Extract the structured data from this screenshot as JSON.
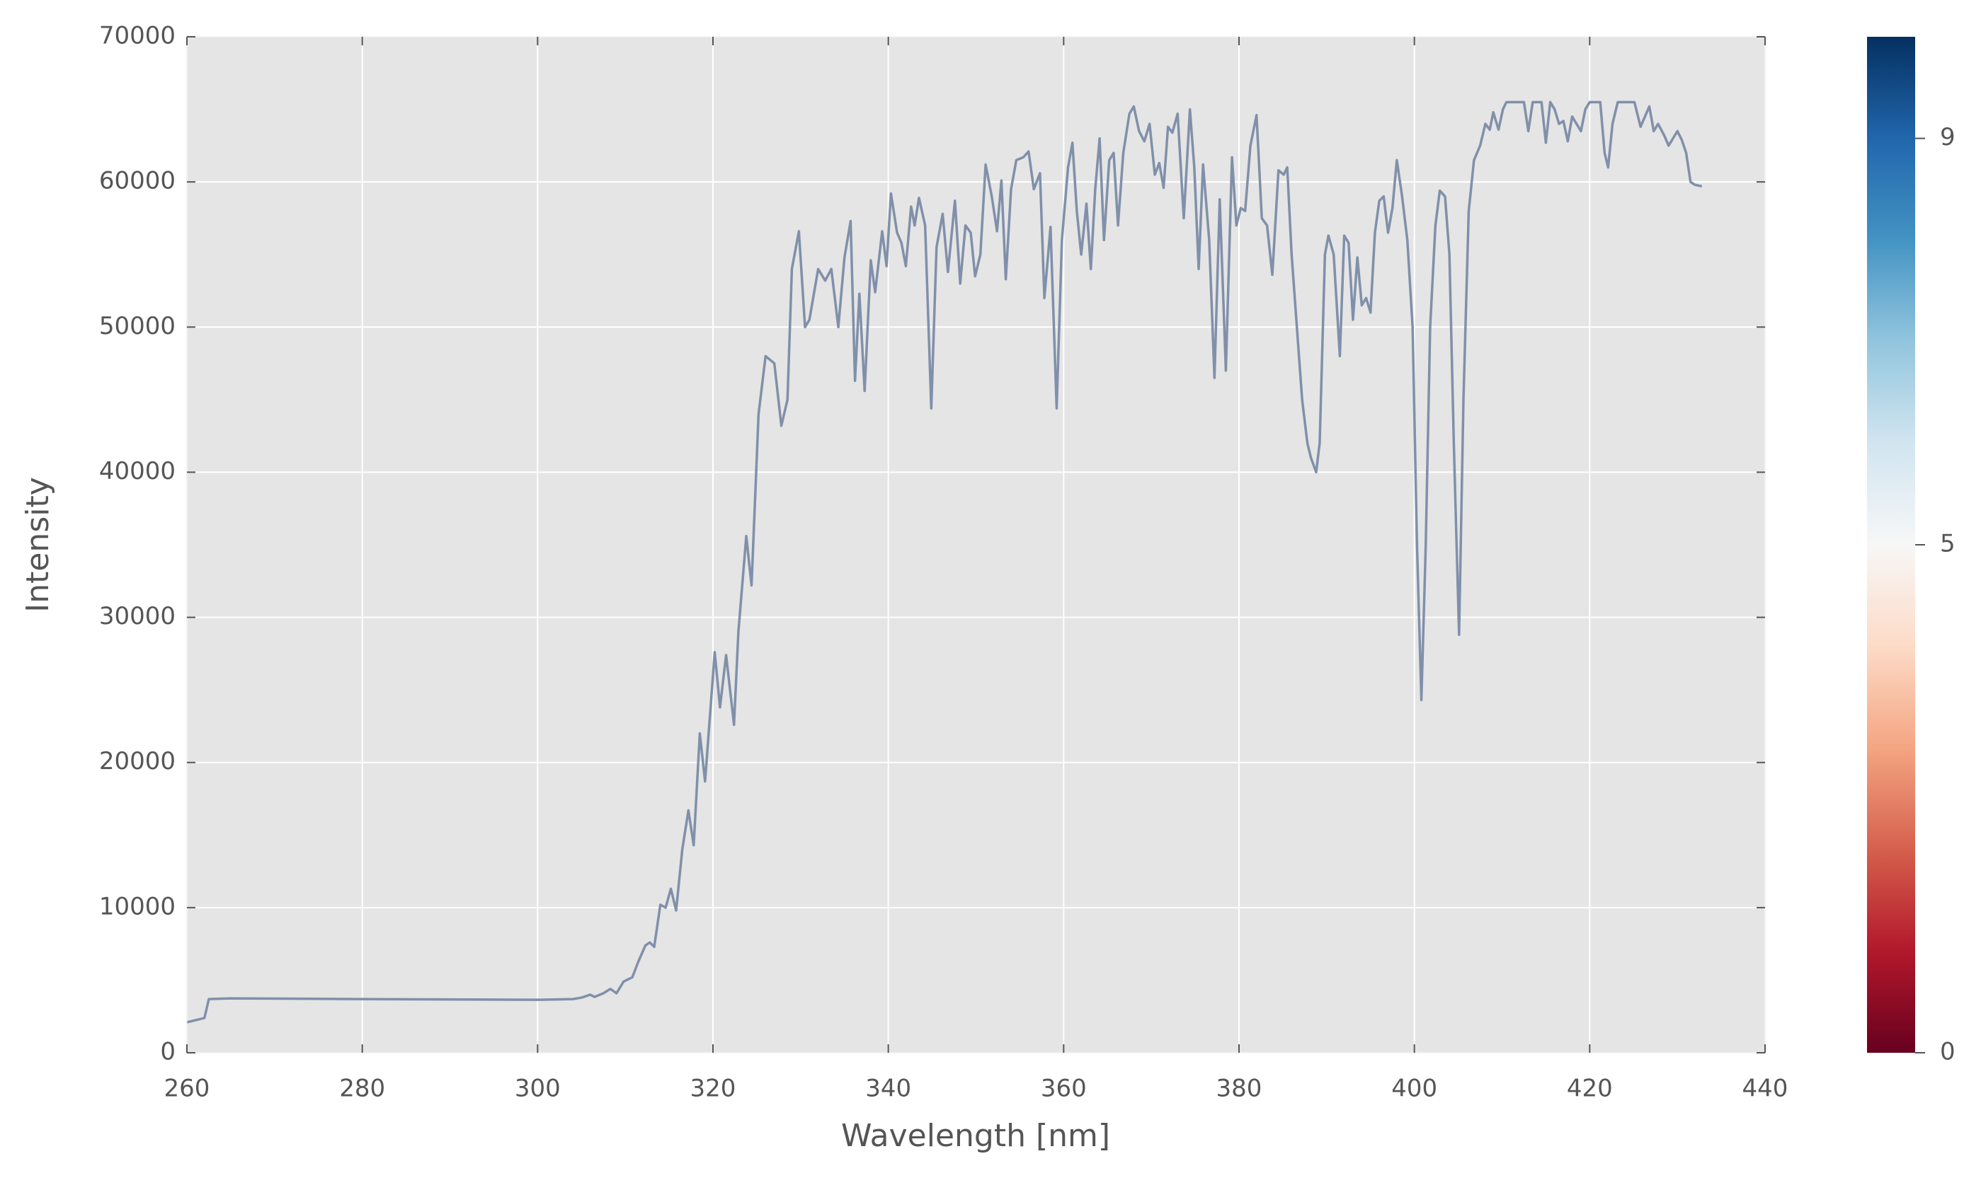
{
  "chart_data": {
    "type": "line",
    "xlabel": "Wavelength [nm]",
    "ylabel": "Intensity",
    "xlim": [
      260,
      440
    ],
    "xticks": [
      260,
      280,
      300,
      320,
      340,
      360,
      380,
      400,
      420,
      440
    ],
    "ylim": [
      0,
      70000
    ],
    "yticks": [
      0,
      10000,
      20000,
      30000,
      40000,
      50000,
      60000,
      70000
    ],
    "grid": true,
    "x": [
      260,
      262,
      262.5,
      265,
      280,
      300,
      304,
      305,
      306,
      306.5,
      307.5,
      308.3,
      309,
      309.8,
      310.8,
      311.5,
      312.3,
      312.8,
      313.3,
      314,
      314.6,
      315.2,
      315.8,
      316.5,
      317.2,
      317.8,
      318.5,
      319.1,
      320.2,
      320.8,
      321.5,
      322.4,
      322.9,
      323.8,
      324.4,
      325.2,
      326,
      327,
      327.8,
      328.5,
      329,
      329.8,
      330.5,
      331,
      332,
      332.8,
      333.5,
      334.3,
      335,
      335.7,
      336.2,
      336.7,
      337.3,
      338,
      338.5,
      339.3,
      339.8,
      340.3,
      341,
      341.5,
      342,
      342.6,
      343,
      343.5,
      344.2,
      344.9,
      345.5,
      346.2,
      346.8,
      347.6,
      348.2,
      348.8,
      349.4,
      349.9,
      350.5,
      351.1,
      351.8,
      352.4,
      352.9,
      353.4,
      354,
      354.6,
      355.4,
      356,
      356.6,
      357.3,
      357.8,
      358.5,
      359.2,
      359.8,
      360.5,
      361,
      361.5,
      362,
      362.6,
      363.1,
      363.6,
      364.1,
      364.6,
      365.2,
      365.7,
      366.2,
      366.8,
      367.5,
      368,
      368.6,
      369.2,
      369.8,
      370.4,
      370.9,
      371.4,
      371.9,
      372.4,
      373,
      373.7,
      374.4,
      374.9,
      375.4,
      375.9,
      376.6,
      377.2,
      377.8,
      378.5,
      379.2,
      379.7,
      380.2,
      380.7,
      381.3,
      382,
      382.6,
      383.2,
      383.8,
      384.5,
      385.1,
      385.5,
      386,
      386.6,
      387.2,
      387.8,
      388.2,
      388.8,
      389.2,
      389.8,
      390.2,
      390.8,
      391.5,
      392,
      392.5,
      393,
      393.5,
      394,
      394.5,
      395,
      395.5,
      396,
      396.5,
      397,
      397.5,
      398,
      398.6,
      399.2,
      399.8,
      400.3,
      400.8,
      401.3,
      401.8,
      402.4,
      402.9,
      403.5,
      404,
      404.5,
      405.1,
      405.6,
      406.2,
      406.8,
      407.5,
      408.1,
      408.6,
      409,
      409.6,
      410.1,
      410.5,
      412.5,
      413,
      413.5,
      414.5,
      415,
      415.5,
      416,
      416.5,
      417,
      417.5,
      418,
      418.5,
      419,
      419.5,
      420,
      421.2,
      421.7,
      422.1,
      422.6,
      423.2,
      425.1,
      425.8,
      426.3,
      426.8,
      427.3,
      427.8,
      428.5,
      429,
      429.5,
      430,
      430.5,
      431,
      431.5,
      432,
      432.8
    ],
    "series": [
      {
        "color": "#8090aa",
        "values": [
          2100,
          2400,
          3700,
          3750,
          3700,
          3650,
          3700,
          3800,
          4000,
          3850,
          4100,
          4400,
          4100,
          4900,
          5200,
          6300,
          7400,
          7600,
          7300,
          10200,
          10000,
          11300,
          9800,
          14000,
          16700,
          14300,
          22000,
          18700,
          27600,
          23800,
          27400,
          22600,
          29000,
          35600,
          32200,
          44000,
          48000,
          47500,
          43200,
          45000,
          54000,
          56600,
          50000,
          50500,
          54000,
          53200,
          54000,
          50000,
          54800,
          57300,
          46300,
          52300,
          45600,
          54600,
          52400,
          56600,
          54200,
          59200,
          56500,
          55800,
          54200,
          58300,
          57000,
          58900,
          57000,
          44400,
          55500,
          57800,
          53800,
          58700,
          53000,
          57000,
          56500,
          53500,
          55000,
          61200,
          59000,
          56600,
          60100,
          53300,
          59500,
          61500,
          61700,
          62100,
          59500,
          60600,
          52000,
          56900,
          44400,
          56000,
          61000,
          62700,
          58000,
          55000,
          58500,
          54000,
          59500,
          63000,
          56000,
          61500,
          62000,
          57000,
          62000,
          64700,
          65200,
          63500,
          62800,
          64000,
          60500,
          61300,
          59600,
          63800,
          63400,
          64700,
          57500,
          65000,
          61000,
          54000,
          61200,
          56000,
          46500,
          58800,
          47000,
          61700,
          57000,
          58200,
          58000,
          62500,
          64600,
          57500,
          57000,
          53600,
          60800,
          60500,
          61000,
          55000,
          50000,
          45000,
          42000,
          41000,
          40000,
          42000,
          55000,
          56300,
          55000,
          48000,
          56300,
          55800,
          50500,
          54800,
          51500,
          52000,
          51000,
          56500,
          58700,
          59000,
          56500,
          58200,
          61500,
          59000,
          56000,
          50000,
          35000,
          24300,
          35000,
          50000,
          57000,
          59400,
          59000,
          55000,
          42000,
          28800,
          45000,
          58000,
          61500,
          62500,
          64000,
          63600,
          64800,
          63600,
          65000,
          65500,
          65500,
          63500,
          65500,
          65500,
          62700,
          65500,
          65000,
          64000,
          64200,
          62800,
          64500,
          64000,
          63500,
          65000,
          65500,
          65500,
          62000,
          61000,
          64000,
          65500,
          65500,
          63800,
          64500,
          65200,
          63500,
          64000,
          63200,
          62500,
          63000,
          63500,
          62900,
          62000,
          60000,
          59800,
          59700
        ]
      }
    ],
    "colorbar": {
      "clim": [
        0,
        10
      ],
      "ticks": [
        0,
        5,
        9
      ],
      "colors": [
        "#67001f",
        "#b2182b",
        "#d6604d",
        "#f4a582",
        "#fddbc7",
        "#f7f7f7",
        "#d1e5f0",
        "#92c5de",
        "#4393c3",
        "#2166ac",
        "#053061"
      ]
    }
  }
}
